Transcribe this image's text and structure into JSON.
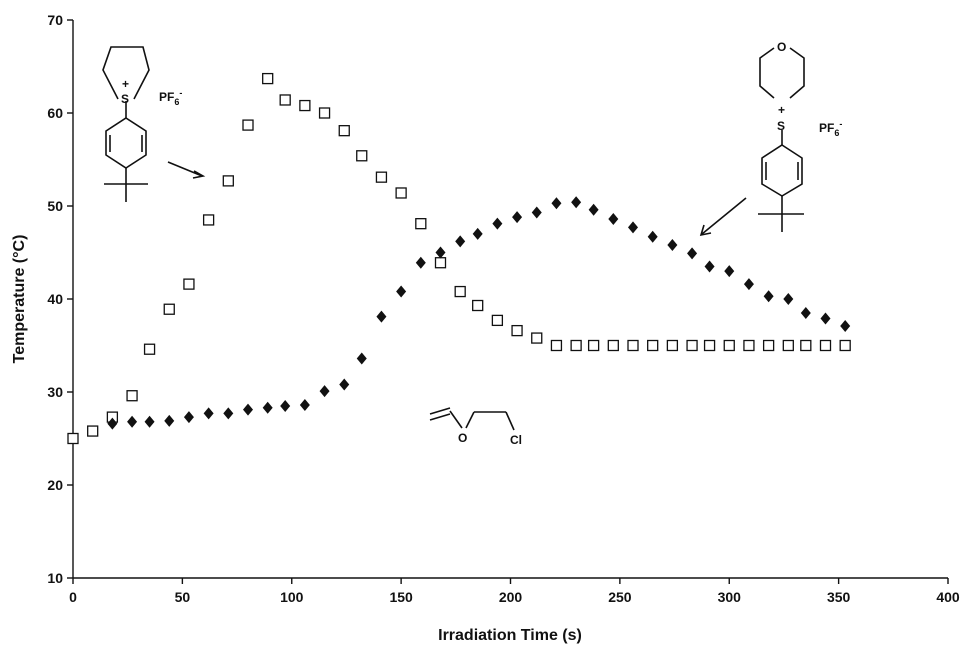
{
  "chart_data": {
    "type": "scatter",
    "title": "",
    "xlabel": "Irradiation Time (s)",
    "ylabel": "Temperature (°C)",
    "xlim": [
      0,
      400
    ],
    "ylim": [
      10,
      70
    ],
    "x_ticks": [
      "0",
      "50",
      "100",
      "150",
      "200",
      "250",
      "300",
      "350",
      "400"
    ],
    "y_ticks": [
      "10",
      "20",
      "30",
      "40",
      "50",
      "60",
      "70"
    ],
    "grid": false,
    "legend": "none",
    "series": [
      {
        "marker": "open-square",
        "color": "#111111",
        "points": [
          [
            0,
            25.0
          ],
          [
            9,
            25.8
          ],
          [
            18,
            27.3
          ],
          [
            27,
            29.6
          ],
          [
            35,
            34.6
          ],
          [
            44,
            38.9
          ],
          [
            53,
            41.6
          ],
          [
            62,
            48.5
          ],
          [
            71,
            52.7
          ],
          [
            80,
            58.7
          ],
          [
            89,
            63.7
          ],
          [
            97,
            61.4
          ],
          [
            106,
            60.8
          ],
          [
            115,
            60.0
          ],
          [
            124,
            58.1
          ],
          [
            132,
            55.4
          ],
          [
            141,
            53.1
          ],
          [
            150,
            51.4
          ],
          [
            159,
            48.1
          ],
          [
            168,
            43.9
          ],
          [
            177,
            40.8
          ],
          [
            185,
            39.3
          ],
          [
            194,
            37.7
          ],
          [
            203,
            36.6
          ],
          [
            212,
            35.8
          ],
          [
            221,
            35.0
          ],
          [
            230,
            35.0
          ],
          [
            238,
            35.0
          ],
          [
            247,
            35.0
          ],
          [
            256,
            35.0
          ],
          [
            265,
            35.0
          ],
          [
            274,
            35.0
          ],
          [
            283,
            35.0
          ],
          [
            291,
            35.0
          ],
          [
            300,
            35.0
          ],
          [
            309,
            35.0
          ],
          [
            318,
            35.0
          ],
          [
            327,
            35.0
          ],
          [
            335,
            35.0
          ],
          [
            344,
            35.0
          ],
          [
            353,
            35.0
          ]
        ]
      },
      {
        "marker": "filled-diamond",
        "color": "#111111",
        "points": [
          [
            18,
            26.6
          ],
          [
            27,
            26.8
          ],
          [
            35,
            26.8
          ],
          [
            44,
            26.9
          ],
          [
            53,
            27.3
          ],
          [
            62,
            27.7
          ],
          [
            71,
            27.7
          ],
          [
            80,
            28.1
          ],
          [
            89,
            28.3
          ],
          [
            97,
            28.5
          ],
          [
            106,
            28.6
          ],
          [
            115,
            30.1
          ],
          [
            124,
            30.8
          ],
          [
            132,
            33.6
          ],
          [
            141,
            38.1
          ],
          [
            150,
            40.8
          ],
          [
            159,
            43.9
          ],
          [
            168,
            45.0
          ],
          [
            177,
            46.2
          ],
          [
            185,
            47.0
          ],
          [
            194,
            48.1
          ],
          [
            203,
            48.8
          ],
          [
            212,
            49.3
          ],
          [
            221,
            50.3
          ],
          [
            230,
            50.4
          ],
          [
            238,
            49.6
          ],
          [
            247,
            48.6
          ],
          [
            256,
            47.7
          ],
          [
            265,
            46.7
          ],
          [
            274,
            45.8
          ],
          [
            283,
            44.9
          ],
          [
            291,
            43.5
          ],
          [
            300,
            43.0
          ],
          [
            309,
            41.6
          ],
          [
            318,
            40.3
          ],
          [
            327,
            40.0
          ],
          [
            335,
            38.5
          ],
          [
            344,
            37.9
          ],
          [
            353,
            37.1
          ]
        ]
      }
    ],
    "annotations": {
      "left_structure_label": "PF6-",
      "right_structure_label": "PF6-",
      "sulfonium_label": "S",
      "charge_label": "+",
      "morpholine_o_label": "O",
      "vinyl_ether_o_label": "O",
      "vinyl_ether_cl_label": "Cl"
    }
  }
}
